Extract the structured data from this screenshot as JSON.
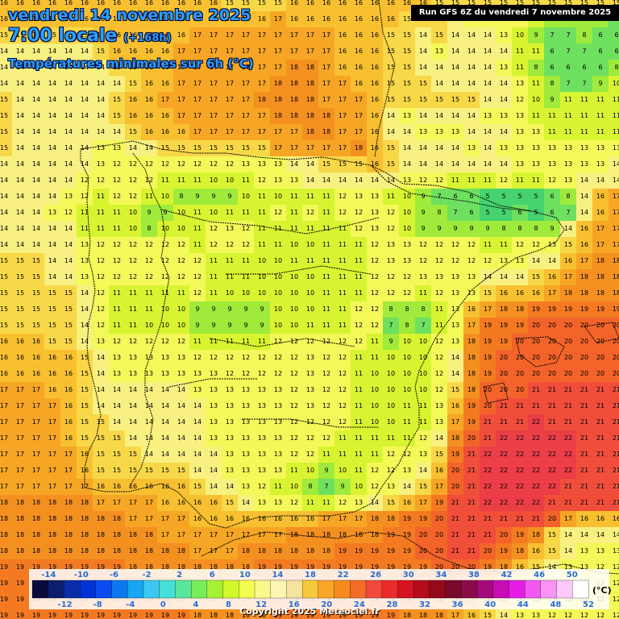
{
  "header": {
    "date_line": "vendredi 14 novembre 2025",
    "time_line": "7:00 locale",
    "offset": "(+168h)",
    "parameter": "Températures minimales sur 6h (°C)",
    "run_info": "Run GFS 6Z du vendredi 7 novembre 2025"
  },
  "footer": {
    "copyright": "Copyright 2025 Meteociel.fr"
  },
  "legend": {
    "unit": "(°C)",
    "top_labels": [
      "-14",
      "-10",
      "-6",
      "-2",
      "2",
      "6",
      "10",
      "14",
      "18",
      "22",
      "26",
      "30",
      "34",
      "38",
      "42",
      "46",
      "50"
    ],
    "bottom_labels": [
      "-12",
      "-8",
      "-4",
      "0",
      "4",
      "8",
      "12",
      "16",
      "20",
      "24",
      "28",
      "32",
      "36",
      "40",
      "44",
      "48",
      "52"
    ],
    "colors": [
      "#0a0a3c",
      "#0c1e6e",
      "#0a2ea8",
      "#0032d6",
      "#0a4cf0",
      "#0c78f0",
      "#16a6f2",
      "#3cc8f2",
      "#46e0d8",
      "#5ae69a",
      "#78ec5a",
      "#a6f036",
      "#d2f82a",
      "#f4fc50",
      "#fafa8c",
      "#fcf6b4",
      "#f4e4a0",
      "#f8c83c",
      "#f8a628",
      "#f68a1e",
      "#f46c28",
      "#f04a3c",
      "#ec2a2a",
      "#d4141e",
      "#b40c1a",
      "#940a1a",
      "#7a0a2a",
      "#8a0a4a",
      "#a40a7c",
      "#c80cb4",
      "#e41ee4",
      "#f05af0",
      "#f894f4",
      "#fccaf8",
      "#ffffff"
    ]
  },
  "grid": {
    "rows": [
      "16 16 16 16 16 16 16 16 16 16 16 16 16 16 15 15 15 15 16 16 16 16 16 16 16 16 16 15 15 15 15 15 15 15 15 15 15 15 15",
      "16 16 16 16 16 16 16 16 16 16 16 16 16 16 16 16 16 17 16 16 16 16 16 16 16 15 15 15 14 13 13 13 13 11 9 8 9 8 7",
      "15 15 15 15 15 15 16 16 16 16 16 16 17 17 17 17 17 17 17 17 17 16 16 16 15 15 14 15 14 14 14 13 10 9 7 7 8 6 6",
      "14 14 14 14 14 14 15 16 16 16 16 17 17 17 17 17 17 17 17 17 17 16 16 16 15 15 14 13 14 14 14 14 11 11 6 7 7 6 6",
      "14 14 14 14 14 14 14 15 15 16 16 17 17 17 17 17 17 17 18 18 17 16 16 16 15 15 14 14 14 14 14 13 11 8 6 6 6 6 8",
      "14 14 14 14 14 14 14 14 15 16 16 17 17 17 17 17 17 18 18 18 17 17 16 16 15 15 15 14 14 14 14 14 13 11 8 7 7 9 10",
      "15 14 14 14 14 14 14 15 16 16 17 17 17 17 17 17 18 18 18 18 17 17 17 16 15 15 15 15 15 15 14 14 12 10 9 11 11 11 11",
      "15 14 14 14 14 14 14 15 16 16 16 17 17 17 17 17 17 18 18 18 18 17 17 16 14 13 14 14 14 14 13 13 13 11 11 11 11 11 11",
      "15 14 14 14 14 14 14 14 15 16 16 16 17 17 17 17 17 17 17 18 18 17 17 16 14 14 13 13 13 14 14 14 13 13 11 11 11 11 11",
      "15 14 14 14 14 14 13 13 14 14 15 15 15 15 15 15 15 17 17 17 17 17 18 16 15 14 14 14 14 13 14 13 13 13 13 13 13 13 13",
      "14 14 14 14 14 14 13 12 12 12 12 12 12 12 12 13 13 13 14 14 15 15 15 16 15 14 14 14 14 14 14 14 13 13 13 13 13 13 14",
      "14 14 14 14 14 12 12 12 12 12 11 11 11 10 10 11 12 13 13 14 14 14 14 14 14 13 12 12 11 11 11 12 11 11 12 13 14 14 14",
      "14 14 14 14 13 12 11 12 12 11 10 8 9 9 9 10 11 10 11 11 11 12 13 13 11 10 9 7 6 6 5 5 5 5 6 8 14 16 17",
      "14 14 14 13 12 11 11 11 10 9 9 10 11 10 11 11 11 12 11 12 11 12 12 13 12 10 9 8 7 6 5 5 6 5 6 7 14 16 17",
      "14 14 14 14 14 11 11 11 10 8 10 10 11 12 13 12 11 11 11 11 11 11 12 13 12 10 9 9 9 9 9 8 8 8 9 14 16 17 17",
      "14 14 14 14 14 13 12 12 12 12 12 12 11 12 12 12 11 11 10 10 11 11 11 12 13 13 12 12 12 12 11 11 12 12 13 15 16 17 17",
      "15 15 15 14 14 13 12 12 12 12 12 12 12 11 11 11 10 10 11 11 11 11 11 12 13 13 12 12 12 12 12 13 13 14 14 16 17 18 18",
      "15 15 15 14 14 13 12 12 12 12 12 12 12 11 11 11 10 10 10 10 11 11 11 12 12 12 13 13 13 13 14 14 14 15 16 17 18 18 18",
      "15 15 15 15 15 14 12 11 11 11 11 11 12 11 10 10 10 10 10 10 11 11 11 12 12 12 11 12 13 13 15 16 16 16 17 18 18 18 18",
      "15 15 15 15 15 14 12 11 11 11 10 10 9 9 9 9 9 10 10 10 11 11 12 12 8 8 8 11 13 16 17 18 18 19 19 19 19 19 19",
      "15 15 15 15 15 14 12 11 11 10 10 10 9 9 9 9 9 10 10 11 11 11 12 12 7 8 7 11 13 17 19 19 19 20 20 20 20 20 20",
      "16 16 16 15 15 14 13 12 12 12 12 12 11 11 11 11 11 12 12 12 12 12 12 11 9 10 10 12 13 18 19 19 20 20 20 20 20 20 20",
      "16 16 16 16 16 15 14 13 13 13 13 13 12 12 12 12 12 12 12 13 12 12 11 11 10 10 10 12 14 18 19 20 20 20 20 20 20 20 20",
      "16 16 16 16 16 15 14 13 13 13 13 13 13 13 12 12 12 12 12 13 12 12 11 10 10 10 10 12 14 18 19 20 20 20 20 20 20 20 20",
      "17 17 17 16 16 15 14 14 14 14 14 14 13 13 13 13 13 13 12 13 12 12 11 10 10 10 10 12 15 18 20 20 20 21 21 21 21 21 21",
      "17 17 17 17 16 15 14 14 14 14 14 14 14 13 13 13 13 13 12 13 12 12 11 10 10 11 11 13 16 19 20 21 21 21 21 21 21 21 21",
      "17 17 17 17 16 15 15 14 14 14 14 14 14 13 13 13 13 13 12 12 12 12 11 10 10 11 11 13 17 19 21 21 21 22 21 21 21 21 21",
      "17 17 17 17 16 15 15 15 14 14 14 14 14 13 13 13 13 13 12 12 12 11 11 11 11 11 12 14 18 20 21 22 22 22 22 22 21 21 21",
      "17 17 17 17 17 16 15 15 15 14 14 14 14 14 13 13 13 13 12 12 11 11 11 11 12 12 13 15 19 21 22 22 22 22 22 22 21 21 21",
      "17 17 17 17 17 16 15 15 15 15 15 15 14 14 13 13 13 13 11 10 9 10 11 12 12 13 14 16 20 21 22 22 22 22 22 22 21 21 21",
      "17 17 17 17 17 17 16 16 16 16 16 16 15 14 14 13 12 11 10 8 7 9 10 12 13 14 15 17 20 21 22 22 22 22 22 21 21 21 21",
      "18 18 18 18 18 18 17 17 17 17 16 16 16 16 15 14 13 13 12 11 11 12 13 14 15 16 17 19 21 21 22 22 22 22 21 21 21 21 21",
      "18 18 18 18 18 18 18 18 17 17 17 17 16 16 16 16 16 16 16 16 17 17 17 18 18 19 19 20 21 21 21 21 21 21 20 17 16 16 16",
      "18 18 18 18 18 18 18 18 18 18 17 17 17 17 17 17 17 17 18 18 18 18 18 18 19 19 20 20 21 21 21 20 19 18 15 14 14 14 14",
      "18 18 18 18 18 18 18 18 18 18 18 18 17 17 17 18 18 18 18 18 18 19 19 19 19 19 20 20 21 21 20 19 18 16 15 14 13 13 13",
      "19 19 19 19 19 19 19 19 18 18 18 18 18 18 18 18 19 19 19 19 19 19 19 19 19 19 19 20 20 20 19 18 16 15 14 13 13 12 12",
      "19 19 19 19 19 19 19 19 19 19 18 18 18 18 18 18 19 19 19 19 19 19 19 19 19 19 19 19 19 18 17 16 15 14 13 13 12 12 12",
      "19 19 19 19 19 19 19 19 19 19 19 18 18 18 18 18 19 19 19 19 19 19 19 19 19 19 19 18 18 17 16 15 14 13 13 12 12 12 12",
      "19 19 19 19 19 19 19 19 19 19 19 19 18 18 18 18 18 19 19 19 19 19 19 19 19 18 18 18 17 16 15 14 13 13 12 12 12 12 12"
    ]
  }
}
